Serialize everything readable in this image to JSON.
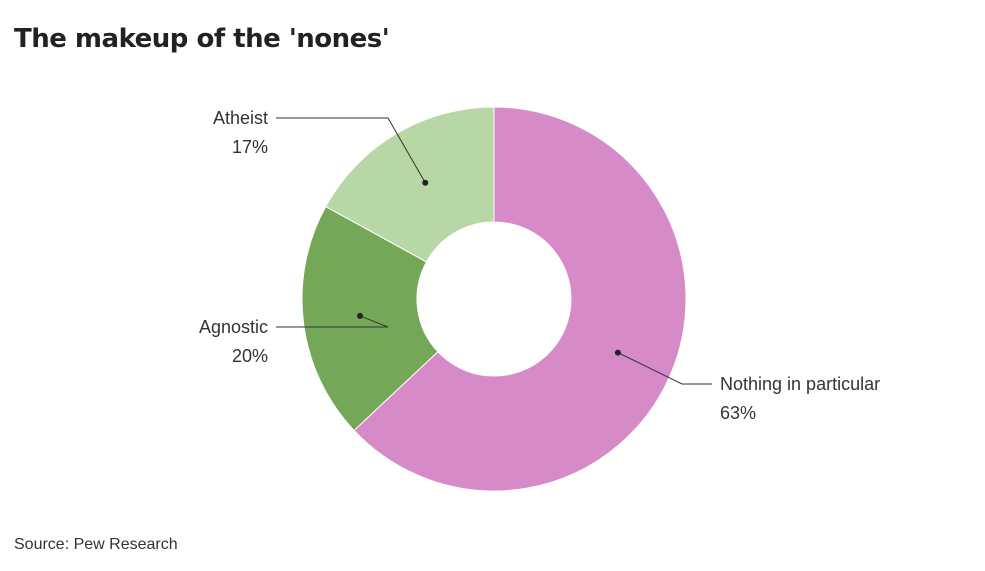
{
  "title": "The makeup of the 'nones'",
  "source": "Source: Pew Research",
  "chart_data": {
    "type": "pie",
    "variant": "donut",
    "title": "The makeup of the 'nones'",
    "start_angle_deg": 0,
    "direction": "clockwise",
    "slices": [
      {
        "label": "Nothing in particular",
        "value": 63,
        "value_label": "63%",
        "color": "#d68bc8"
      },
      {
        "label": "Agnostic",
        "value": 20,
        "value_label": "20%",
        "color": "#74a858"
      },
      {
        "label": "Atheist",
        "value": 17,
        "value_label": "17%",
        "color": "#b7d7a5"
      }
    ],
    "legend": "none",
    "labels": "outside with leader lines"
  }
}
